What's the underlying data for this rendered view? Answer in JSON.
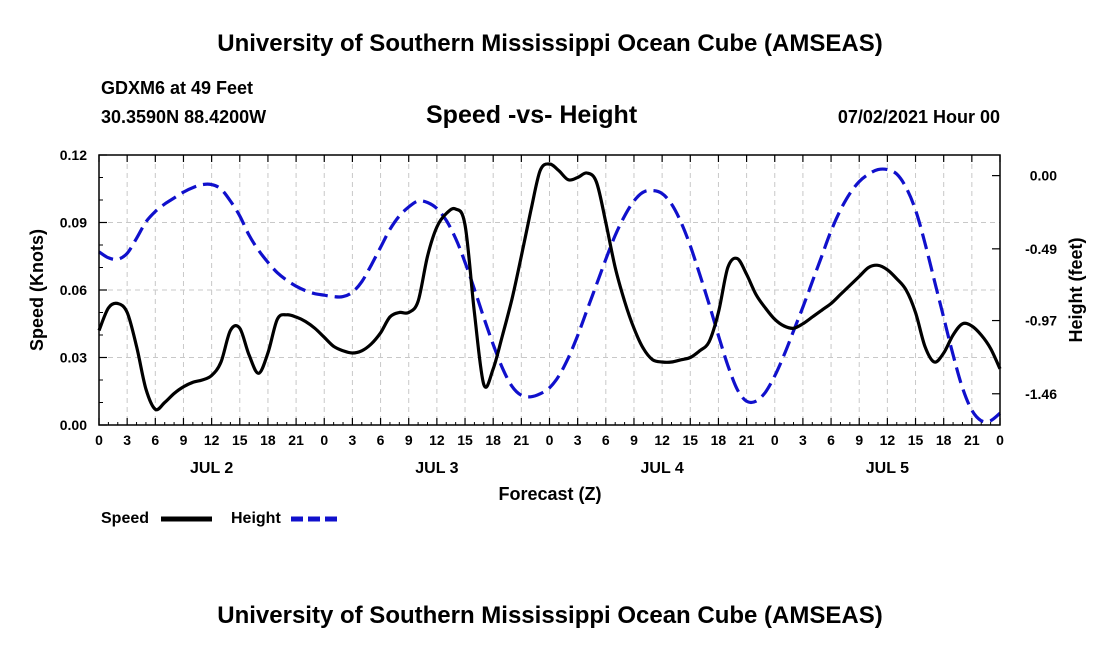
{
  "header": {
    "title_top": "University of Southern Mississippi Ocean Cube (AMSEAS)",
    "station": "GDXM6 at 49 Feet",
    "location": "30.3590N  88.4200W",
    "datetime": "07/02/2021 Hour 00",
    "title_bottom": "University of Southern Mississippi Ocean Cube (AMSEAS)"
  },
  "legend": {
    "speed_label": "Speed",
    "height_label": "Height"
  },
  "colors": {
    "speed": "#000000",
    "height": "#1010cc",
    "grid": "#c8c8c8"
  },
  "chart_data": {
    "type": "line",
    "title": "Speed -vs- Height",
    "xlabel": "Forecast (Z)",
    "ylabel": "Speed (Knots)",
    "y2label": "Height (feet)",
    "x_unit": "hours since 07/02/2021 00Z",
    "xlim": [
      0,
      96
    ],
    "ylim": [
      0,
      0.12
    ],
    "y2lim": [
      -1.669,
      0.138
    ],
    "x_ticks": [
      0,
      3,
      6,
      9,
      12,
      15,
      18,
      21,
      24,
      27,
      30,
      33,
      36,
      39,
      42,
      45,
      48,
      51,
      54,
      57,
      60,
      63,
      66,
      69,
      72,
      75,
      78,
      81,
      84,
      87,
      90,
      93,
      96
    ],
    "x_tick_labels": [
      "0",
      "3",
      "6",
      "9",
      "12",
      "15",
      "18",
      "21",
      "0",
      "3",
      "6",
      "9",
      "12",
      "15",
      "18",
      "21",
      "0",
      "3",
      "6",
      "9",
      "12",
      "15",
      "18",
      "21",
      "0",
      "3",
      "6",
      "9",
      "12",
      "15",
      "18",
      "21",
      "0"
    ],
    "day_labels": [
      {
        "x": 12,
        "label": "JUL 2"
      },
      {
        "x": 36,
        "label": "JUL 3"
      },
      {
        "x": 60,
        "label": "JUL 4"
      },
      {
        "x": 84,
        "label": "JUL 5"
      }
    ],
    "y_ticks": [
      0,
      0.03,
      0.06,
      0.09,
      0.12
    ],
    "y_tick_labels": [
      "0.00",
      "0.03",
      "0.06",
      "0.09",
      "0.12"
    ],
    "y2_ticks": [
      0.0,
      -0.49,
      -0.97,
      -1.46
    ],
    "y2_tick_labels": [
      "0.00",
      "-0.49",
      "-0.97",
      "-1.46"
    ],
    "series": [
      {
        "name": "Speed",
        "axis": "left",
        "style": "solid",
        "x": [
          0,
          1,
          2,
          3,
          4,
          5,
          6,
          7,
          8,
          9,
          10,
          11,
          12,
          13,
          14,
          15,
          16,
          17,
          18,
          19,
          20,
          21,
          22,
          23,
          24,
          25,
          26,
          27,
          28,
          29,
          30,
          31,
          32,
          33,
          34,
          35,
          36,
          37,
          38,
          39,
          40,
          41,
          42,
          43,
          44,
          45,
          46,
          47,
          48,
          49,
          50,
          51,
          52,
          53,
          54,
          55,
          56,
          57,
          58,
          59,
          60,
          61,
          62,
          63,
          64,
          65,
          66,
          67,
          68,
          69,
          70,
          71,
          72,
          73,
          74,
          75,
          76,
          77,
          78,
          79,
          80,
          81,
          82,
          83,
          84,
          85,
          86,
          87,
          88,
          89,
          90,
          91,
          92,
          93,
          94,
          95,
          96
        ],
        "values": [
          0.042,
          0.052,
          0.054,
          0.05,
          0.035,
          0.016,
          0.007,
          0.01,
          0.014,
          0.017,
          0.019,
          0.02,
          0.022,
          0.028,
          0.042,
          0.043,
          0.031,
          0.023,
          0.032,
          0.047,
          0.049,
          0.048,
          0.046,
          0.043,
          0.039,
          0.035,
          0.033,
          0.032,
          0.033,
          0.036,
          0.041,
          0.048,
          0.05,
          0.05,
          0.055,
          0.075,
          0.088,
          0.094,
          0.096,
          0.089,
          0.05,
          0.018,
          0.025,
          0.04,
          0.056,
          0.075,
          0.095,
          0.113,
          0.116,
          0.113,
          0.109,
          0.11,
          0.112,
          0.108,
          0.09,
          0.07,
          0.055,
          0.043,
          0.034,
          0.029,
          0.028,
          0.028,
          0.029,
          0.03,
          0.033,
          0.037,
          0.05,
          0.07,
          0.074,
          0.067,
          0.058,
          0.052,
          0.047,
          0.044,
          0.043,
          0.045,
          0.048,
          0.051,
          0.054,
          0.058,
          0.062,
          0.066,
          0.07,
          0.071,
          0.069,
          0.065,
          0.06,
          0.05,
          0.035,
          0.028,
          0.032,
          0.04,
          0.045,
          0.044,
          0.04,
          0.034,
          0.025
        ]
      },
      {
        "name": "Height",
        "axis": "right",
        "style": "dashed",
        "x": [
          0,
          1,
          2,
          3,
          4,
          5,
          6,
          7,
          8,
          9,
          10,
          11,
          12,
          13,
          14,
          15,
          16,
          17,
          18,
          19,
          20,
          21,
          22,
          23,
          24,
          25,
          26,
          27,
          28,
          29,
          30,
          31,
          32,
          33,
          34,
          35,
          36,
          37,
          38,
          39,
          40,
          41,
          42,
          43,
          44,
          45,
          46,
          47,
          48,
          49,
          50,
          51,
          52,
          53,
          54,
          55,
          56,
          57,
          58,
          59,
          60,
          61,
          62,
          63,
          64,
          65,
          66,
          67,
          68,
          69,
          70,
          71,
          72,
          73,
          74,
          75,
          76,
          77,
          78,
          79,
          80,
          81,
          82,
          83,
          84,
          85,
          86,
          87,
          88,
          89,
          90,
          91,
          92,
          93,
          94,
          95,
          96
        ],
        "values": [
          -0.51,
          -0.55,
          -0.56,
          -0.52,
          -0.42,
          -0.31,
          -0.24,
          -0.19,
          -0.15,
          -0.11,
          -0.08,
          -0.06,
          -0.06,
          -0.09,
          -0.17,
          -0.27,
          -0.4,
          -0.5,
          -0.58,
          -0.65,
          -0.7,
          -0.74,
          -0.77,
          -0.79,
          -0.8,
          -0.81,
          -0.81,
          -0.78,
          -0.71,
          -0.6,
          -0.48,
          -0.36,
          -0.27,
          -0.21,
          -0.17,
          -0.18,
          -0.22,
          -0.3,
          -0.42,
          -0.58,
          -0.76,
          -0.95,
          -1.13,
          -1.29,
          -1.41,
          -1.47,
          -1.48,
          -1.46,
          -1.42,
          -1.34,
          -1.22,
          -1.07,
          -0.9,
          -0.73,
          -0.56,
          -0.4,
          -0.27,
          -0.17,
          -0.11,
          -0.1,
          -0.12,
          -0.19,
          -0.31,
          -0.47,
          -0.66,
          -0.86,
          -1.07,
          -1.27,
          -1.43,
          -1.51,
          -1.51,
          -1.45,
          -1.34,
          -1.2,
          -1.04,
          -0.88,
          -0.71,
          -0.54,
          -0.37,
          -0.23,
          -0.12,
          -0.04,
          0.01,
          0.04,
          0.04,
          0.01,
          -0.08,
          -0.23,
          -0.45,
          -0.7,
          -0.95,
          -1.2,
          -1.42,
          -1.57,
          -1.64,
          -1.64,
          -1.59
        ]
      }
    ]
  }
}
